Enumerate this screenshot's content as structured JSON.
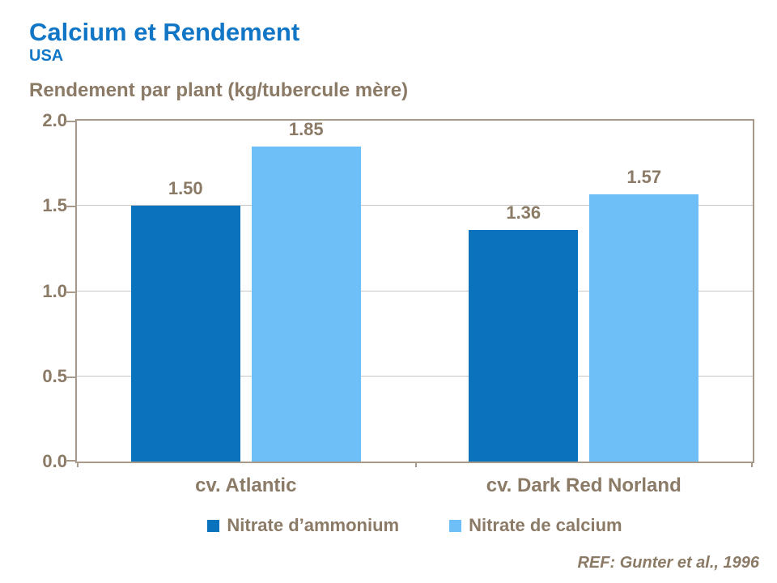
{
  "header": {
    "title": "Calcium et Rendement",
    "subtitle": "USA"
  },
  "chart_data": {
    "type": "bar",
    "title": "Rendement par plant (kg/tubercule mère)",
    "categories": [
      "cv. Atlantic",
      "cv. Dark Red Norland"
    ],
    "series": [
      {
        "name": "Nitrate d’ammonium",
        "color": "#0b72be",
        "values": [
          1.5,
          1.36
        ],
        "value_labels": [
          "1.50",
          "1.36"
        ]
      },
      {
        "name": "Nitrate de calcium",
        "color": "#6ebef8",
        "values": [
          1.85,
          1.57
        ],
        "value_labels": [
          "1.85",
          "1.57"
        ]
      }
    ],
    "ylim": [
      0.0,
      2.0
    ],
    "yticks": [
      "2.0",
      "1.5",
      "1.0",
      "0.5",
      "0.0"
    ],
    "grid": true,
    "legend_position": "bottom",
    "colors": {
      "title_blue": "#1176c6",
      "text_brown": "#8b7a66",
      "axis_border": "#a79a8b",
      "gridline": "#c6c6c6"
    }
  },
  "footer": {
    "reference": "REF: Gunter et al., 1996"
  }
}
